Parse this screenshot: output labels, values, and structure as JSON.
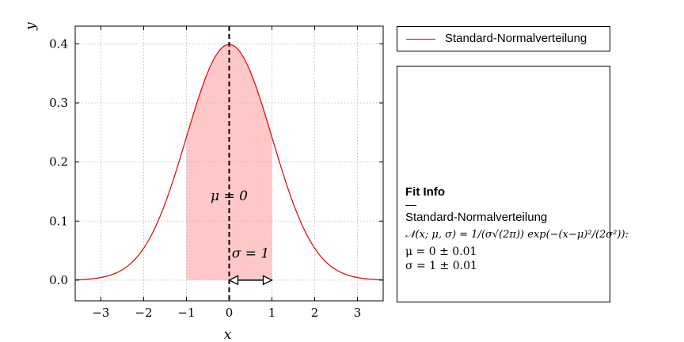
{
  "chart_data": {
    "type": "line",
    "xlabel": "x",
    "ylabel": "y",
    "xlim": [
      -3.6,
      3.6
    ],
    "ylim": [
      -0.035,
      0.43
    ],
    "x_ticks": [
      -3,
      -2,
      -1,
      0,
      1,
      2,
      3
    ],
    "x_tick_labels": [
      "−3",
      "−2",
      "−1",
      "0",
      "1",
      "2",
      "3"
    ],
    "y_ticks": [
      0.0,
      0.1,
      0.2,
      0.3,
      0.4
    ],
    "y_tick_labels": [
      "0.0",
      "0.1",
      "0.2",
      "0.3",
      "0.4"
    ],
    "grid": true,
    "series": [
      {
        "name": "Standard-Normalverteilung",
        "color": "#e00000",
        "function": "normal_pdf",
        "mu": 0,
        "sigma": 1
      }
    ],
    "shaded_region": {
      "x_from": -1,
      "x_to": 1,
      "color": "#ffc8c8"
    },
    "mean_line": {
      "x": 0,
      "style": "dashed",
      "color": "#000000"
    },
    "annotations": [
      {
        "text": "μ = 0",
        "x": 0,
        "y": 0.135
      },
      {
        "text": "σ = 1",
        "x": 0.5,
        "y": 0.038
      }
    ],
    "sigma_arrow": {
      "x_from": 0,
      "x_to": 1,
      "y": 0
    },
    "legend": {
      "position": "outside-right-top",
      "entries": [
        "Standard-Normalverteilung"
      ]
    }
  },
  "fit_info": {
    "title": "Fit Info",
    "separator": "—",
    "model_name": "Standard-Normalverteilung",
    "formula": "𝒩(x; μ, σ) = 1/(σ√(2π)) exp(−(x−μ)²/(2σ²)):",
    "params": [
      "μ = 0 ± 0.01",
      "σ = 1 ± 0.01"
    ]
  }
}
